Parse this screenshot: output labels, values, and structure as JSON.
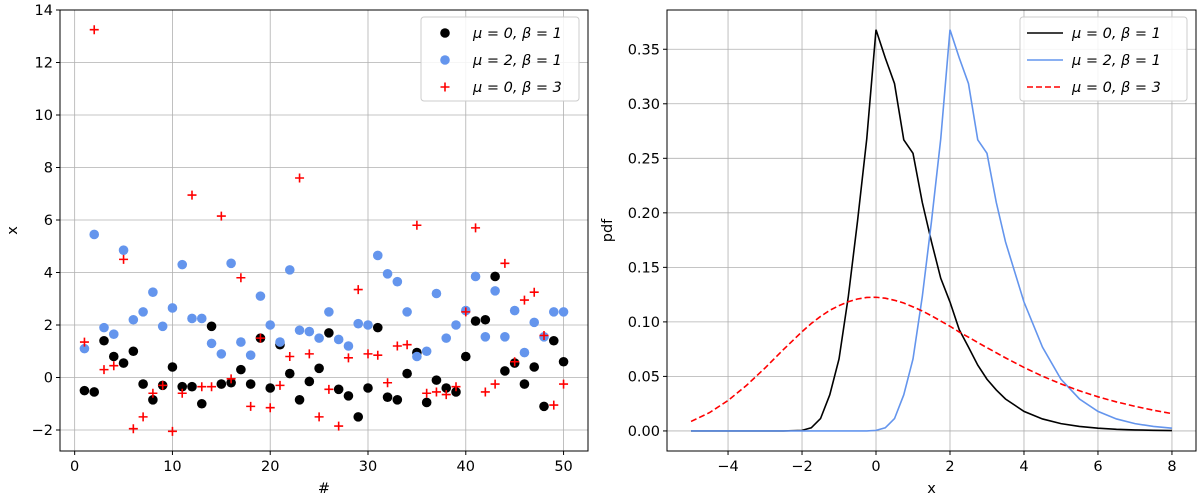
{
  "chart_data": [
    {
      "type": "scatter",
      "xlabel": "#",
      "ylabel": "x",
      "xlim": [
        -1.5,
        52.5
      ],
      "ylim": [
        -2.8,
        14
      ],
      "xticks": [
        0,
        10,
        20,
        30,
        40,
        50
      ],
      "yticks": [
        -2,
        0,
        2,
        4,
        6,
        8,
        10,
        12,
        14
      ],
      "grid": true,
      "legend_position": "top-right",
      "x": [
        1,
        2,
        3,
        4,
        5,
        6,
        7,
        8,
        9,
        10,
        11,
        12,
        13,
        14,
        15,
        16,
        17,
        18,
        19,
        20,
        21,
        22,
        23,
        24,
        25,
        26,
        27,
        28,
        29,
        30,
        31,
        32,
        33,
        34,
        35,
        36,
        37,
        38,
        39,
        40,
        41,
        42,
        43,
        44,
        45,
        46,
        47,
        48,
        49,
        50
      ],
      "series": [
        {
          "name": "μ = 0,  β = 1",
          "color": "#000000",
          "marker": "circle",
          "values": [
            -0.5,
            -0.55,
            1.4,
            0.8,
            0.55,
            1.0,
            -0.25,
            -0.85,
            -0.3,
            0.4,
            -0.35,
            -0.35,
            -1.0,
            1.95,
            -0.25,
            -0.2,
            0.3,
            -0.25,
            1.5,
            -0.4,
            1.25,
            0.15,
            -0.85,
            -0.15,
            0.35,
            1.7,
            -0.45,
            -0.7,
            -1.5,
            -0.4,
            1.9,
            -0.75,
            -0.85,
            0.15,
            0.95,
            -0.95,
            -0.1,
            -0.4,
            -0.55,
            0.8,
            2.15,
            2.2,
            3.85,
            0.25,
            0.55,
            -0.25,
            0.4,
            -1.1,
            1.4,
            0.6
          ]
        },
        {
          "name": "μ = 2,  β = 1",
          "color": "#6495ed",
          "marker": "circle",
          "values": [
            1.1,
            5.45,
            1.9,
            1.65,
            4.85,
            2.2,
            2.5,
            3.25,
            1.95,
            2.65,
            4.3,
            2.25,
            2.25,
            1.3,
            0.9,
            4.35,
            1.35,
            0.85,
            3.1,
            2.0,
            1.35,
            4.1,
            1.8,
            1.75,
            1.5,
            2.5,
            1.45,
            1.2,
            2.05,
            2.0,
            4.65,
            3.95,
            3.65,
            2.5,
            0.8,
            1.0,
            3.2,
            1.5,
            2.0,
            2.55,
            3.85,
            1.55,
            3.3,
            1.55,
            2.55,
            0.95,
            2.1,
            1.55,
            2.5,
            2.5
          ]
        },
        {
          "name": "μ = 0,  β = 3",
          "color": "#ff0000",
          "marker": "plus",
          "values": [
            1.35,
            13.25,
            0.3,
            0.45,
            4.5,
            -1.95,
            -1.5,
            -0.6,
            -0.3,
            -2.05,
            -0.6,
            6.95,
            -0.35,
            -0.35,
            6.15,
            -0.05,
            3.8,
            -1.1,
            1.5,
            -1.15,
            -0.3,
            0.8,
            7.6,
            0.9,
            -1.5,
            -0.45,
            -1.85,
            0.75,
            3.35,
            0.9,
            0.85,
            -0.2,
            1.2,
            1.25,
            5.8,
            -0.6,
            -0.55,
            -0.65,
            -0.35,
            2.5,
            5.7,
            -0.55,
            -0.25,
            4.35,
            0.6,
            2.95,
            3.25,
            1.6,
            -1.05,
            -0.25
          ]
        }
      ]
    },
    {
      "type": "line",
      "xlabel": "x",
      "ylabel": "pdf",
      "xlim": [
        -5.65,
        8.65
      ],
      "ylim": [
        -0.0184,
        0.386
      ],
      "xticks": [
        -4,
        -2,
        0,
        2,
        4,
        6,
        8
      ],
      "yticks": [
        0.0,
        0.05,
        0.1,
        0.15,
        0.2,
        0.25,
        0.3,
        0.35
      ],
      "ytick_labels": [
        "0.00",
        "0.05",
        "0.10",
        "0.15",
        "0.20",
        "0.25",
        "0.30",
        "0.35"
      ],
      "grid": true,
      "legend_position": "top-right",
      "x": [
        -5,
        -4.5,
        -4,
        -3.5,
        -3,
        -2.5,
        -2,
        -1.75,
        -1.5,
        -1.25,
        -1,
        -0.75,
        -0.5,
        -0.25,
        0,
        0.25,
        0.5,
        0.75,
        1,
        1.25,
        1.5,
        1.75,
        2,
        2.25,
        2.5,
        2.75,
        3,
        3.25,
        3.5,
        4,
        4.5,
        5,
        5.5,
        6,
        6.5,
        7,
        7.5,
        8
      ],
      "series": [
        {
          "name": "μ = 0,  β = 1",
          "color": "#000000",
          "dash": "solid",
          "values": [
            0,
            0,
            0,
            0,
            0,
            0,
            0.0005,
            0.0029,
            0.0113,
            0.0331,
            0.066,
            0.1229,
            0.1923,
            0.2679,
            0.3679,
            0.3421,
            0.3185,
            0.267,
            0.2546,
            0.2097,
            0.1734,
            0.14,
            0.1182,
            0.0929,
            0.0768,
            0.0604,
            0.0474,
            0.0376,
            0.0293,
            0.0179,
            0.011,
            0.0067,
            0.0041,
            0.0025,
            0.0015,
            0.0009,
            0.0006,
            0.0003
          ]
        },
        {
          "name": "μ = 2,  β = 1",
          "color": "#6495ed",
          "dash": "solid",
          "values": [
            0,
            0,
            0,
            0,
            0,
            0,
            0,
            0,
            0,
            0,
            0,
            0,
            0,
            0,
            0.0005,
            0.0029,
            0.0113,
            0.0331,
            0.066,
            0.1229,
            0.1923,
            0.2679,
            0.3679,
            0.3421,
            0.3185,
            0.267,
            0.2546,
            0.2097,
            0.1734,
            0.1182,
            0.0768,
            0.0474,
            0.0293,
            0.0179,
            0.011,
            0.0067,
            0.0041,
            0.0025
          ]
        },
        {
          "name": "μ = 0,  β = 3",
          "color": "#ff0000",
          "dash": "dashed",
          "values": [
            0.0087,
            0.0168,
            0.0279,
            0.0418,
            0.0577,
            0.0747,
            0.091,
            0.0985,
            0.105,
            0.1106,
            0.1149,
            0.1185,
            0.121,
            0.1224,
            0.1226,
            0.1217,
            0.1198,
            0.1173,
            0.1138,
            0.11,
            0.1056,
            0.1008,
            0.096,
            0.0907,
            0.086,
            0.0811,
            0.0763,
            0.0717,
            0.067,
            0.0582,
            0.0502,
            0.0431,
            0.0368,
            0.0313,
            0.0266,
            0.0226,
            0.019,
            0.0159
          ]
        }
      ]
    }
  ]
}
